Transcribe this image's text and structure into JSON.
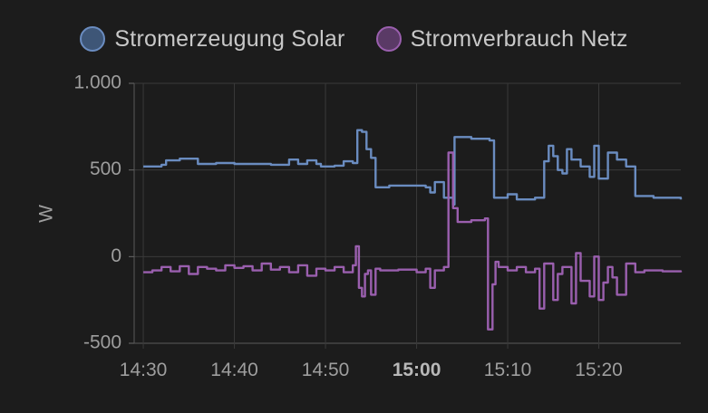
{
  "chart_data": {
    "type": "line",
    "ylabel": "W",
    "ylim": [
      -500,
      1000
    ],
    "yticks": [
      {
        "value": 1000,
        "label": "1.000"
      },
      {
        "value": 500,
        "label": "500"
      },
      {
        "value": 0,
        "label": "0"
      },
      {
        "value": -500,
        "label": "-500"
      }
    ],
    "xlim": [
      "14:29",
      "15:29"
    ],
    "xticks": [
      {
        "time": "14:30",
        "label": "14:30",
        "bold": false
      },
      {
        "time": "14:40",
        "label": "14:40",
        "bold": false
      },
      {
        "time": "14:50",
        "label": "14:50",
        "bold": false
      },
      {
        "time": "15:00",
        "label": "15:00",
        "bold": true
      },
      {
        "time": "15:10",
        "label": "15:10",
        "bold": false
      },
      {
        "time": "15:20",
        "label": "15:20",
        "bold": false
      }
    ],
    "grid": true,
    "legend_position": "top",
    "series": [
      {
        "name": "Stromerzeugung Solar",
        "color": "#6a8cc0",
        "fill": "#3e5677",
        "points": [
          [
            "14:30:00",
            520
          ],
          [
            "14:32:00",
            530
          ],
          [
            "14:32:30",
            555
          ],
          [
            "14:34:00",
            565
          ],
          [
            "14:36:00",
            535
          ],
          [
            "14:38:00",
            540
          ],
          [
            "14:40:00",
            535
          ],
          [
            "14:44:00",
            530
          ],
          [
            "14:46:00",
            560
          ],
          [
            "14:47:00",
            535
          ],
          [
            "14:48:00",
            555
          ],
          [
            "14:49:00",
            535
          ],
          [
            "14:49:30",
            520
          ],
          [
            "14:51:00",
            525
          ],
          [
            "14:52:00",
            550
          ],
          [
            "14:53:00",
            540
          ],
          [
            "14:53:30",
            730
          ],
          [
            "14:54:00",
            720
          ],
          [
            "14:54:30",
            620
          ],
          [
            "14:55:00",
            570
          ],
          [
            "14:55:30",
            400
          ],
          [
            "14:57:00",
            410
          ],
          [
            "15:01:00",
            400
          ],
          [
            "15:01:30",
            370
          ],
          [
            "15:02:00",
            430
          ],
          [
            "15:03:00",
            340
          ],
          [
            "15:04:00",
            300
          ],
          [
            "15:04:10",
            690
          ],
          [
            "15:06:00",
            680
          ],
          [
            "15:08:00",
            670
          ],
          [
            "15:08:30",
            340
          ],
          [
            "15:10:00",
            360
          ],
          [
            "15:11:00",
            330
          ],
          [
            "15:13:00",
            340
          ],
          [
            "15:14:00",
            550
          ],
          [
            "15:14:30",
            640
          ],
          [
            "15:15:00",
            580
          ],
          [
            "15:15:30",
            500
          ],
          [
            "15:16:00",
            480
          ],
          [
            "15:16:30",
            620
          ],
          [
            "15:17:00",
            560
          ],
          [
            "15:18:00",
            520
          ],
          [
            "15:19:00",
            460
          ],
          [
            "15:19:30",
            640
          ],
          [
            "15:20:00",
            450
          ],
          [
            "15:21:00",
            600
          ],
          [
            "15:22:00",
            560
          ],
          [
            "15:23:00",
            520
          ],
          [
            "15:24:00",
            350
          ],
          [
            "15:26:00",
            340
          ],
          [
            "15:29:00",
            330
          ]
        ]
      },
      {
        "name": "Stromverbrauch Netz",
        "color": "#9a5fae",
        "fill": "#5a3a66",
        "points": [
          [
            "14:30:00",
            -90
          ],
          [
            "14:31:00",
            -80
          ],
          [
            "14:32:00",
            -60
          ],
          [
            "14:33:00",
            -85
          ],
          [
            "14:34:00",
            -55
          ],
          [
            "14:35:00",
            -100
          ],
          [
            "14:36:00",
            -60
          ],
          [
            "14:37:00",
            -70
          ],
          [
            "14:38:00",
            -80
          ],
          [
            "14:39:00",
            -50
          ],
          [
            "14:40:00",
            -65
          ],
          [
            "14:41:00",
            -55
          ],
          [
            "14:42:00",
            -80
          ],
          [
            "14:43:00",
            -40
          ],
          [
            "14:44:00",
            -75
          ],
          [
            "14:45:00",
            -60
          ],
          [
            "14:46:00",
            -90
          ],
          [
            "14:47:00",
            -50
          ],
          [
            "14:48:00",
            -110
          ],
          [
            "14:49:00",
            -70
          ],
          [
            "14:50:00",
            -80
          ],
          [
            "14:51:00",
            -60
          ],
          [
            "14:52:00",
            -90
          ],
          [
            "14:53:00",
            -50
          ],
          [
            "14:53:20",
            60
          ],
          [
            "14:53:40",
            -180
          ],
          [
            "14:54:00",
            -230
          ],
          [
            "14:54:20",
            -100
          ],
          [
            "14:54:40",
            -80
          ],
          [
            "14:55:00",
            -220
          ],
          [
            "14:55:30",
            -70
          ],
          [
            "14:56:00",
            -80
          ],
          [
            "14:58:00",
            -75
          ],
          [
            "15:00:00",
            -90
          ],
          [
            "15:01:00",
            -70
          ],
          [
            "15:01:30",
            -180
          ],
          [
            "15:02:00",
            -80
          ],
          [
            "15:03:00",
            -60
          ],
          [
            "15:03:30",
            600
          ],
          [
            "15:04:00",
            280
          ],
          [
            "15:04:30",
            200
          ],
          [
            "15:06:00",
            210
          ],
          [
            "15:07:30",
            220
          ],
          [
            "15:07:50",
            -420
          ],
          [
            "15:08:20",
            -160
          ],
          [
            "15:08:40",
            -30
          ],
          [
            "15:09:00",
            -60
          ],
          [
            "15:10:00",
            -80
          ],
          [
            "15:11:00",
            -60
          ],
          [
            "15:12:00",
            -90
          ],
          [
            "15:13:00",
            -70
          ],
          [
            "15:13:30",
            -300
          ],
          [
            "15:14:00",
            -40
          ],
          [
            "15:15:00",
            -250
          ],
          [
            "15:15:30",
            -100
          ],
          [
            "15:16:00",
            -60
          ],
          [
            "15:17:00",
            -270
          ],
          [
            "15:17:30",
            20
          ],
          [
            "15:18:00",
            -140
          ],
          [
            "15:19:00",
            -230
          ],
          [
            "15:19:30",
            0
          ],
          [
            "15:20:00",
            -250
          ],
          [
            "15:20:30",
            -150
          ],
          [
            "15:21:00",
            -60
          ],
          [
            "15:21:30",
            -120
          ],
          [
            "15:22:00",
            -220
          ],
          [
            "15:23:00",
            -40
          ],
          [
            "15:24:00",
            -90
          ],
          [
            "15:25:00",
            -80
          ],
          [
            "15:27:00",
            -85
          ],
          [
            "15:29:00",
            -90
          ]
        ]
      }
    ]
  }
}
